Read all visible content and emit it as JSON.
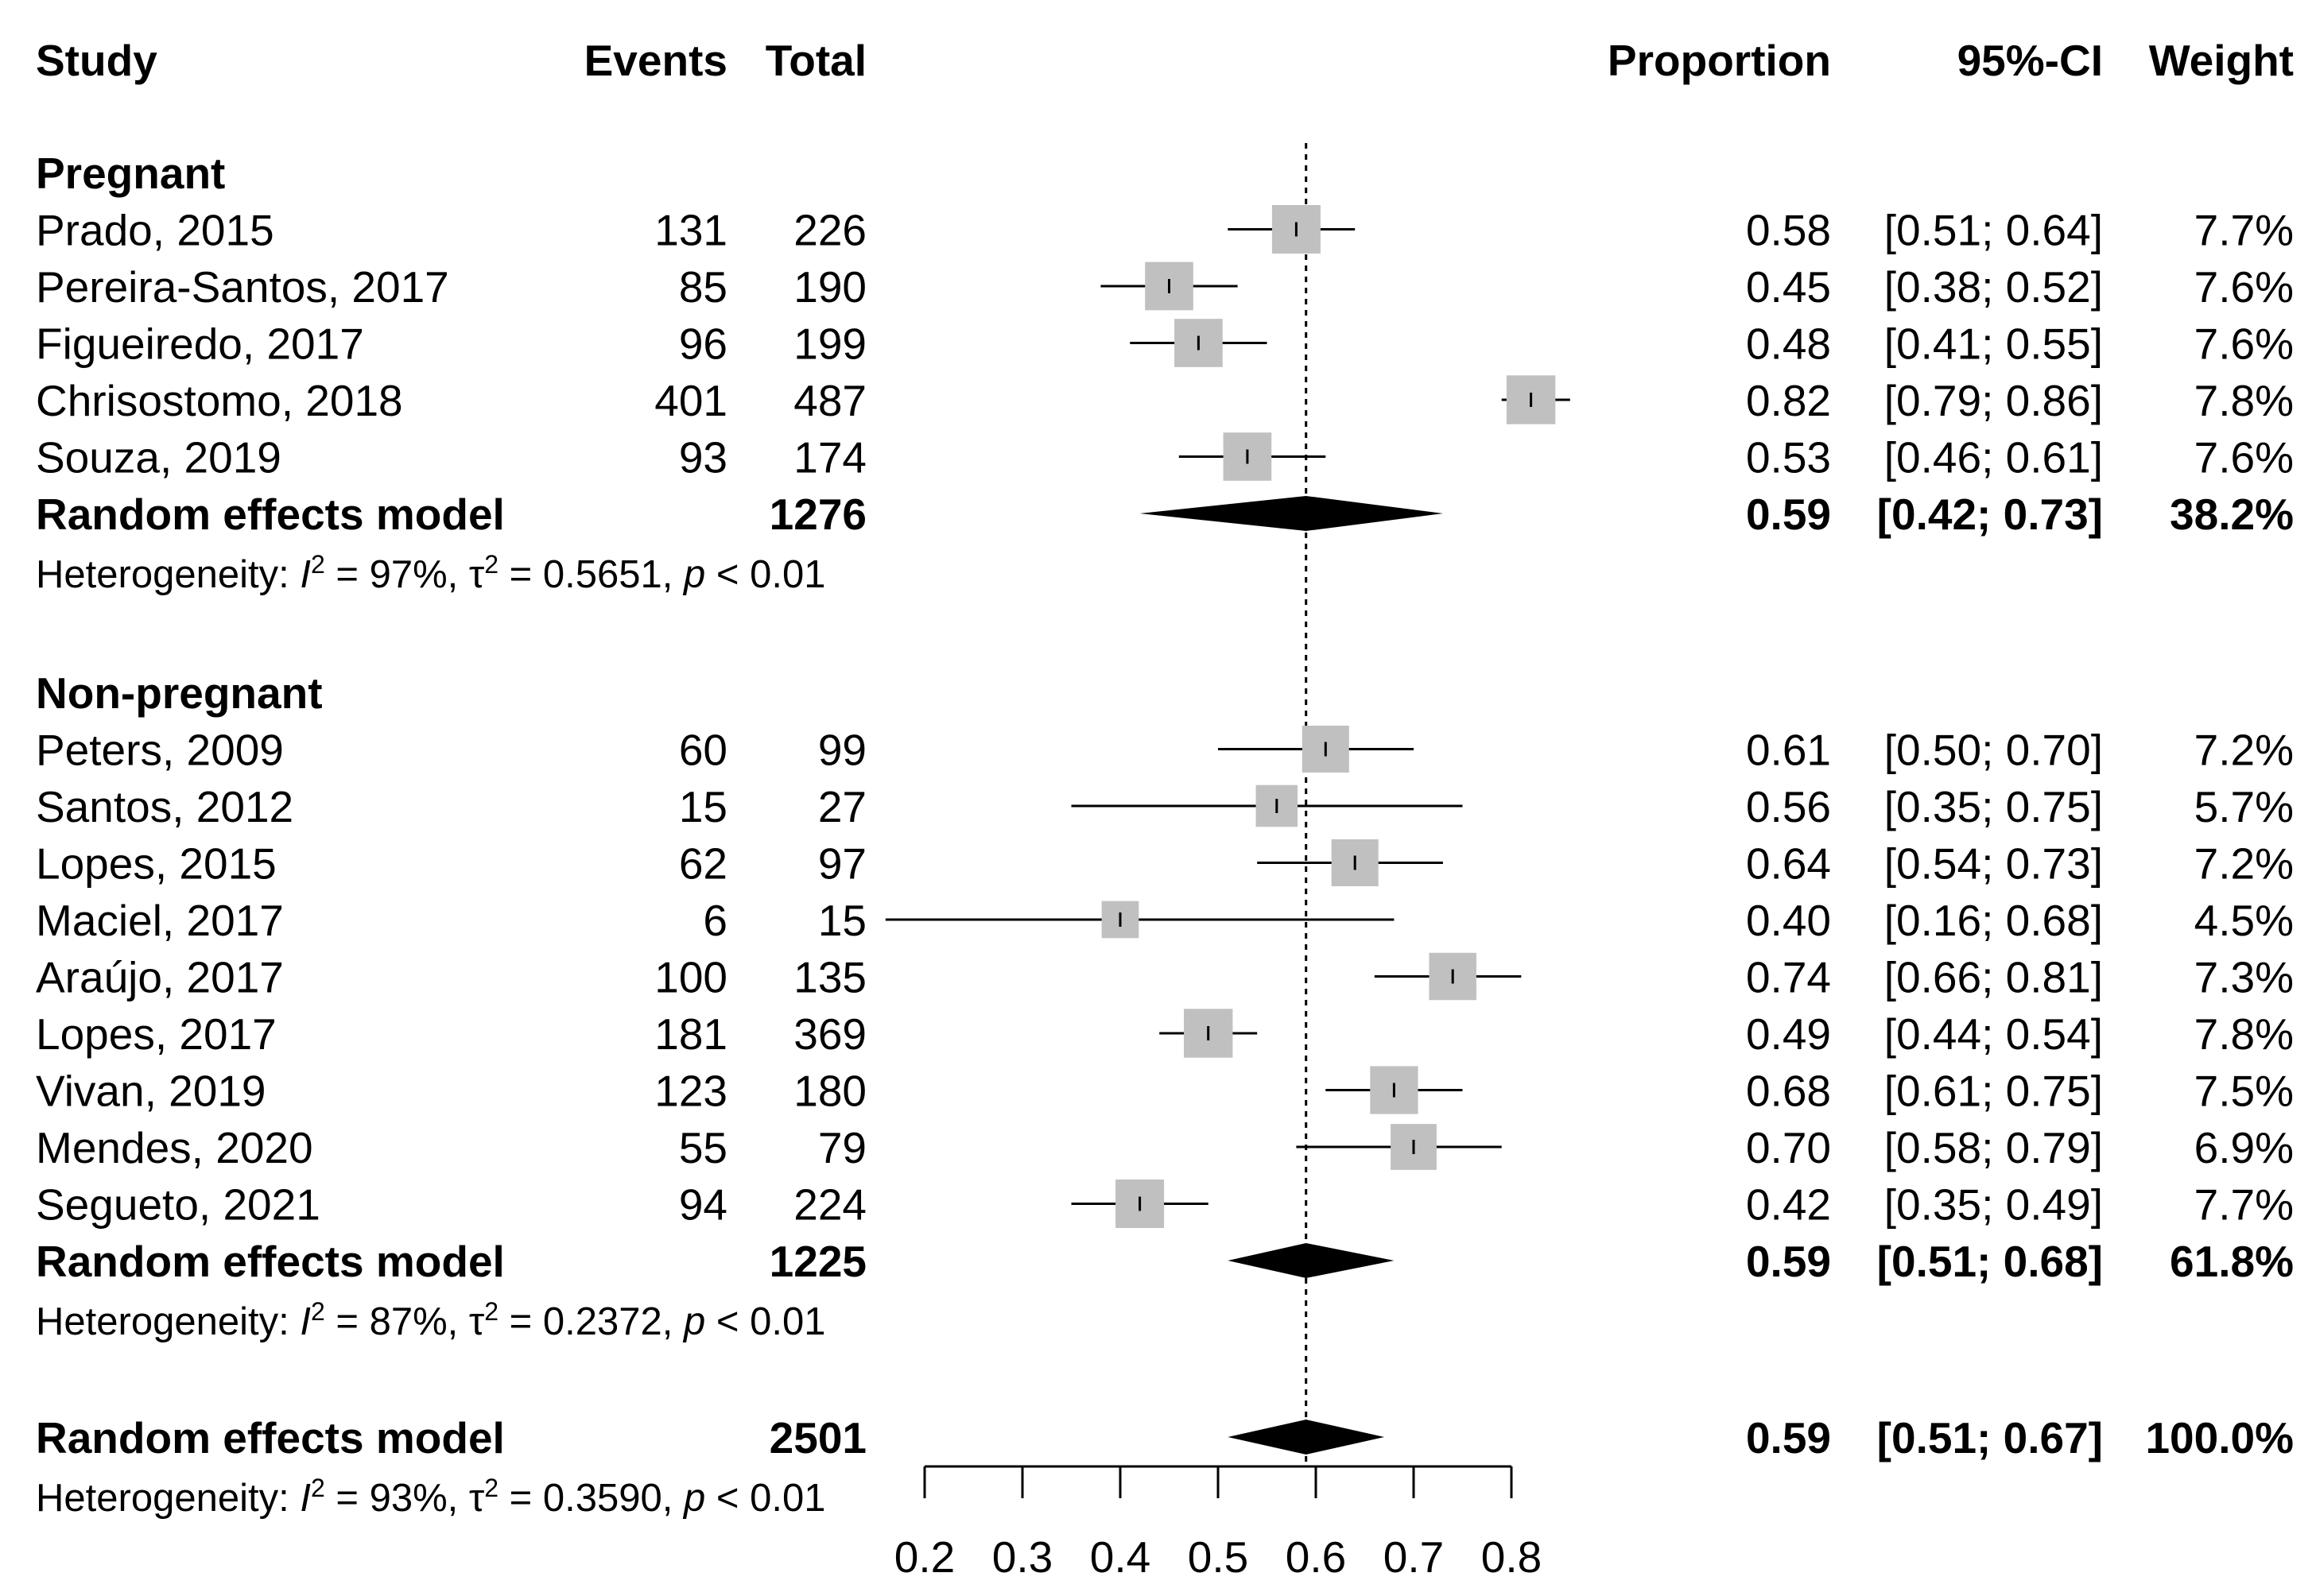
{
  "chart_data": {
    "type": "forest",
    "title": "",
    "headers": {
      "study": "Study",
      "events": "Events",
      "total": "Total",
      "proportion": "Proportion",
      "ci": "95%-CI",
      "weight": "Weight"
    },
    "xaxis": {
      "min": 0.2,
      "max": 0.8,
      "ticks": [
        "0.2",
        "0.3",
        "0.4",
        "0.5",
        "0.6",
        "0.7",
        "0.8"
      ],
      "reference_line": 0.59
    },
    "groups": [
      {
        "name": "Pregnant",
        "studies": [
          {
            "study": "Prado, 2015",
            "events": "131",
            "total": "226",
            "prop": 0.58,
            "lower": 0.51,
            "upper": 0.64,
            "prop_text": "0.58",
            "ci_text": "[0.51; 0.64]",
            "weight_text": "7.7%",
            "weight": 7.7
          },
          {
            "study": "Pereira-Santos, 2017",
            "events": "85",
            "total": "190",
            "prop": 0.45,
            "lower": 0.38,
            "upper": 0.52,
            "prop_text": "0.45",
            "ci_text": "[0.38; 0.52]",
            "weight_text": "7.6%",
            "weight": 7.6
          },
          {
            "study": "Figueiredo, 2017",
            "events": "96",
            "total": "199",
            "prop": 0.48,
            "lower": 0.41,
            "upper": 0.55,
            "prop_text": "0.48",
            "ci_text": "[0.41; 0.55]",
            "weight_text": "7.6%",
            "weight": 7.6
          },
          {
            "study": "Chrisostomo, 2018",
            "events": "401",
            "total": "487",
            "prop": 0.82,
            "lower": 0.79,
            "upper": 0.86,
            "prop_text": "0.82",
            "ci_text": "[0.79; 0.86]",
            "weight_text": "7.8%",
            "weight": 7.8
          },
          {
            "study": "Souza, 2019",
            "events": "93",
            "total": "174",
            "prop": 0.53,
            "lower": 0.46,
            "upper": 0.61,
            "prop_text": "0.53",
            "ci_text": "[0.46; 0.61]",
            "weight_text": "7.6%",
            "weight": 7.6
          }
        ],
        "summary": {
          "label": "Random effects model",
          "total": "1276",
          "prop": 0.59,
          "lower": 0.42,
          "upper": 0.73,
          "prop_text": "0.59",
          "ci_text": "[0.42; 0.73]",
          "weight_text": "38.2%"
        },
        "heterogeneity": {
          "prefix": "Heterogeneity: ",
          "i2": "= 97%, ",
          "tau2": "= 0.5651, ",
          "p": "< 0.01"
        }
      },
      {
        "name": "Non-pregnant",
        "studies": [
          {
            "study": "Peters, 2009",
            "events": "60",
            "total": "99",
            "prop": 0.61,
            "lower": 0.5,
            "upper": 0.7,
            "prop_text": "0.61",
            "ci_text": "[0.50; 0.70]",
            "weight_text": "7.2%",
            "weight": 7.2
          },
          {
            "study": "Santos, 2012",
            "events": "15",
            "total": "27",
            "prop": 0.56,
            "lower": 0.35,
            "upper": 0.75,
            "prop_text": "0.56",
            "ci_text": "[0.35; 0.75]",
            "weight_text": "5.7%",
            "weight": 5.7
          },
          {
            "study": "Lopes, 2015",
            "events": "62",
            "total": "97",
            "prop": 0.64,
            "lower": 0.54,
            "upper": 0.73,
            "prop_text": "0.64",
            "ci_text": "[0.54; 0.73]",
            "weight_text": "7.2%",
            "weight": 7.2
          },
          {
            "study": "Maciel, 2017",
            "events": "6",
            "total": "15",
            "prop": 0.4,
            "lower": 0.16,
            "upper": 0.68,
            "prop_text": "0.40",
            "ci_text": "[0.16; 0.68]",
            "weight_text": "4.5%",
            "weight": 4.5
          },
          {
            "study": "Araújo, 2017",
            "events": "100",
            "total": "135",
            "prop": 0.74,
            "lower": 0.66,
            "upper": 0.81,
            "prop_text": "0.74",
            "ci_text": "[0.66; 0.81]",
            "weight_text": "7.3%",
            "weight": 7.3
          },
          {
            "study": "Lopes, 2017",
            "events": "181",
            "total": "369",
            "prop": 0.49,
            "lower": 0.44,
            "upper": 0.54,
            "prop_text": "0.49",
            "ci_text": "[0.44; 0.54]",
            "weight_text": "7.8%",
            "weight": 7.8
          },
          {
            "study": "Vivan, 2019",
            "events": "123",
            "total": "180",
            "prop": 0.68,
            "lower": 0.61,
            "upper": 0.75,
            "prop_text": "0.68",
            "ci_text": "[0.61; 0.75]",
            "weight_text": "7.5%",
            "weight": 7.5
          },
          {
            "study": "Mendes, 2020",
            "events": "55",
            "total": "79",
            "prop": 0.7,
            "lower": 0.58,
            "upper": 0.79,
            "prop_text": "0.70",
            "ci_text": "[0.58; 0.79]",
            "weight_text": "6.9%",
            "weight": 6.9
          },
          {
            "study": "Segueto, 2021",
            "events": "94",
            "total": "224",
            "prop": 0.42,
            "lower": 0.35,
            "upper": 0.49,
            "prop_text": "0.42",
            "ci_text": "[0.35; 0.49]",
            "weight_text": "7.7%",
            "weight": 7.7
          }
        ],
        "summary": {
          "label": "Random effects model",
          "total": "1225",
          "prop": 0.59,
          "lower": 0.51,
          "upper": 0.68,
          "prop_text": "0.59",
          "ci_text": "[0.51; 0.68]",
          "weight_text": "61.8%"
        },
        "heterogeneity": {
          "prefix": "Heterogeneity: ",
          "i2": "= 87%, ",
          "tau2": "= 0.2372, ",
          "p": "< 0.01"
        }
      }
    ],
    "overall": {
      "label": "Random effects model",
      "total": "2501",
      "prop": 0.59,
      "lower": 0.51,
      "upper": 0.67,
      "prop_text": "0.59",
      "ci_text": "[0.51; 0.67]",
      "weight_text": "100.0%",
      "heterogeneity": {
        "prefix": "Heterogeneity: ",
        "i2": "= 93%, ",
        "tau2": "= 0.3590, ",
        "p": "< 0.01"
      }
    },
    "colors": {
      "square": "#c0c0c0",
      "line": "#000000",
      "diamond": "#000000"
    }
  }
}
